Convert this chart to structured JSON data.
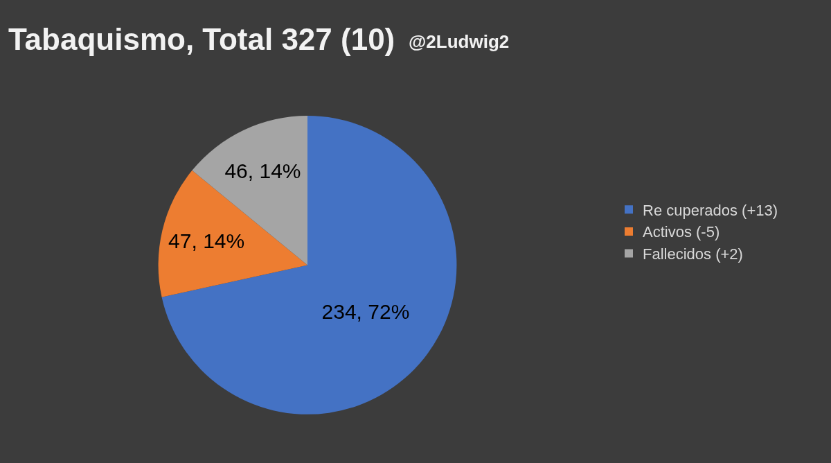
{
  "chart_data": {
    "type": "pie",
    "title": "Tabaquismo, Total 327 (10)",
    "subtitle": "@2Ludwig2",
    "categories": [
      "Re cuperados (+13)",
      "Activos (-5)",
      "Fallecidos (+2)"
    ],
    "values": [
      234,
      47,
      46
    ],
    "colors": [
      "#4472c4",
      "#ed7d31",
      "#a5a5a5"
    ],
    "value_labels": [
      "234, 72%",
      "47, 14%",
      "46, 14%"
    ],
    "legend": "right"
  }
}
